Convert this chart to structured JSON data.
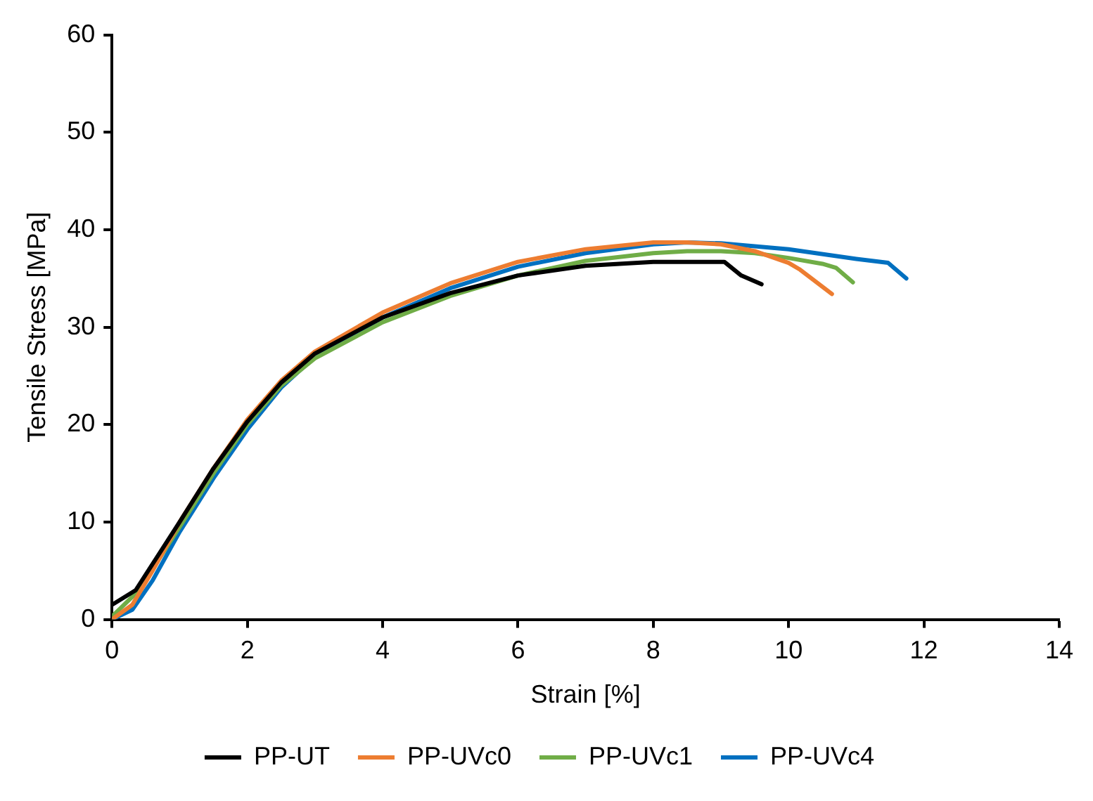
{
  "chart_data": {
    "type": "line",
    "xlabel": "Strain [%]",
    "ylabel": "Tensile Stress [MPa]",
    "xlim": [
      0,
      14
    ],
    "xticks": [
      0,
      2,
      4,
      6,
      8,
      10,
      12,
      14
    ],
    "ylim": [
      0,
      60
    ],
    "yticks": [
      0,
      10,
      20,
      30,
      40,
      50,
      60
    ],
    "grid": false,
    "legend": "bottom",
    "marker": "none",
    "line_style": "solid",
    "series": [
      {
        "name": "PP-UT",
        "color": "#000000",
        "x": [
          0,
          0.35,
          1,
          1.5,
          2,
          2.5,
          3,
          4,
          5,
          6,
          7,
          8,
          9.05,
          9.3,
          9.6
        ],
        "values": [
          1.5,
          3,
          10,
          15.5,
          20.3,
          24.3,
          27.3,
          31,
          33.5,
          35.3,
          36.3,
          36.7,
          36.7,
          35.3,
          34.4
        ]
      },
      {
        "name": "PP-UVc0",
        "color": "#ed7d31",
        "x": [
          0,
          0.3,
          0.6,
          1,
          1.5,
          2,
          2.5,
          3,
          4,
          5,
          6,
          7,
          8,
          8.5,
          9,
          9.5,
          10,
          10.17,
          10.64
        ],
        "values": [
          0,
          1.5,
          5,
          10,
          15.5,
          20.5,
          24.5,
          27.5,
          31.5,
          34.5,
          36.7,
          38,
          38.7,
          38.7,
          38.5,
          37.8,
          36.6,
          35.9,
          33.4
        ]
      },
      {
        "name": "PP-UVc1",
        "color": "#70ad47",
        "x": [
          0,
          0.4,
          1,
          1.5,
          2,
          2.5,
          3,
          4,
          5,
          6,
          7,
          8,
          8.5,
          9,
          9.5,
          10,
          10.5,
          10.7,
          10.95
        ],
        "values": [
          0.3,
          3,
          9.5,
          15,
          20,
          24,
          26.8,
          30.5,
          33.2,
          35.3,
          36.8,
          37.6,
          37.8,
          37.8,
          37.6,
          37.1,
          36.5,
          36.1,
          34.6
        ]
      },
      {
        "name": "PP-UVc4",
        "color": "#0070c0",
        "x": [
          0,
          0.3,
          0.6,
          1,
          1.5,
          2,
          2.5,
          3,
          4,
          5,
          6,
          7,
          8,
          8.5,
          9,
          10,
          11,
          11.47,
          11.74
        ],
        "values": [
          0,
          1,
          4,
          9,
          14.5,
          19.5,
          23.8,
          27,
          31,
          34,
          36.2,
          37.6,
          38.5,
          38.7,
          38.6,
          38,
          37,
          36.6,
          35
        ]
      }
    ]
  }
}
